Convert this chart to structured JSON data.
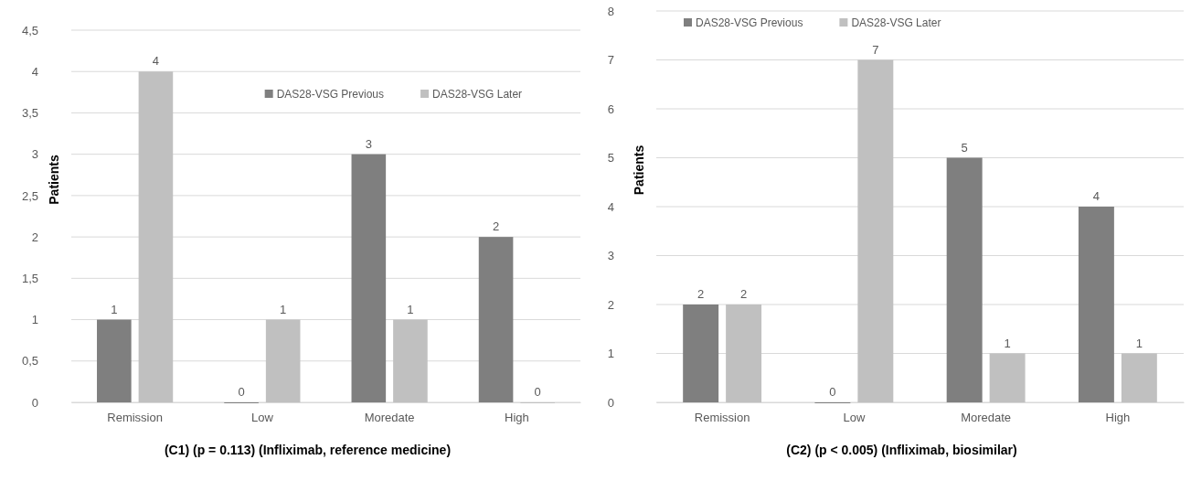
{
  "chart_data": [
    {
      "type": "bar",
      "ylabel": "Patients",
      "categories": [
        "Remission",
        "Low",
        "Moredate",
        "High"
      ],
      "series": [
        {
          "name": "DAS28-VSG Previous",
          "color": "#7f7f7f",
          "values": [
            1,
            0,
            3,
            2
          ]
        },
        {
          "name": "DAS28-VSG Later",
          "color": "#c0c0c0",
          "values": [
            4,
            1,
            1,
            0
          ]
        }
      ],
      "ylim": [
        0,
        4.5
      ],
      "yticks": [
        0,
        {
          "value": 0.5,
          "label": "0,5"
        },
        1,
        {
          "value": 1.5,
          "label": "1,5"
        },
        2,
        {
          "value": 2.5,
          "label": "2,5"
        },
        3,
        {
          "value": 3.5,
          "label": "3,5"
        },
        4,
        {
          "value": 4.5,
          "label": "4,5"
        }
      ],
      "grid": "y",
      "legend": "top right",
      "data_labels": true,
      "annotations": [
        "(C1) (p = 0.113) (Infliximab, reference medicine)"
      ]
    },
    {
      "type": "bar",
      "ylabel": "Patients",
      "categories": [
        "Remission",
        "Low",
        "Moredate",
        "High"
      ],
      "series": [
        {
          "name": "DAS28-VSG Previous",
          "color": "#7f7f7f",
          "values": [
            2,
            0,
            5,
            4
          ]
        },
        {
          "name": "DAS28-VSG Later",
          "color": "#c0c0c0",
          "values": [
            2,
            7,
            1,
            1
          ]
        }
      ],
      "ylim": [
        0,
        8
      ],
      "yticks": [
        0,
        1,
        2,
        3,
        4,
        5,
        6,
        7,
        8
      ],
      "grid": "y",
      "legend": "top left",
      "data_labels": true,
      "annotations": [
        "(C2) (p < 0.005) (Infliximab, biosimilar)"
      ]
    }
  ]
}
